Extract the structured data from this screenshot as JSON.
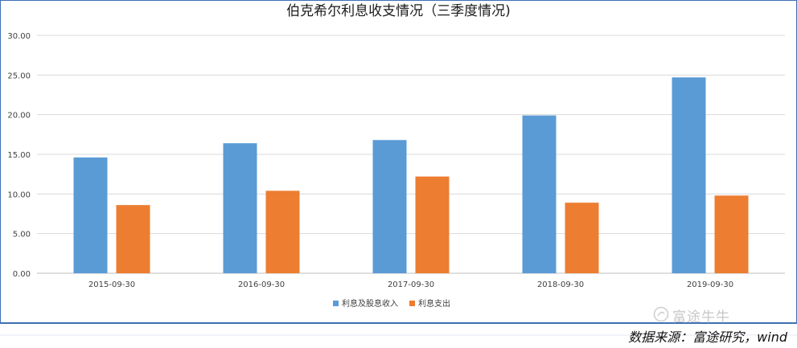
{
  "header": {
    "title": "伯克希尔利息收支情况（三季度情况)"
  },
  "watermark": {
    "text": "富途牛牛"
  },
  "footer": {
    "source": "数据来源：富途研究，wind"
  },
  "colors": {
    "frame": "#3d6fb5",
    "series1": "#5b9bd5",
    "series2": "#ed7d31",
    "grid": "#d9d9d9"
  },
  "chart_data": {
    "type": "bar",
    "title": "伯克希尔利息收支情况（三季度情况)",
    "categories": [
      "2015-09-30",
      "2016-09-30",
      "2017-09-30",
      "2018-09-30",
      "2019-09-30"
    ],
    "series": [
      {
        "name": "利息及股息收入",
        "color": "#5b9bd5",
        "values": [
          14.6,
          16.4,
          16.8,
          19.9,
          24.7
        ]
      },
      {
        "name": "利息支出",
        "color": "#ed7d31",
        "values": [
          8.6,
          10.4,
          12.2,
          8.9,
          9.8
        ]
      }
    ],
    "ylim": [
      0,
      30
    ],
    "yticks": [
      "0.00",
      "5.00",
      "10.00",
      "15.00",
      "20.00",
      "25.00",
      "30.00"
    ],
    "grid": true,
    "legend": "bottom-center"
  }
}
